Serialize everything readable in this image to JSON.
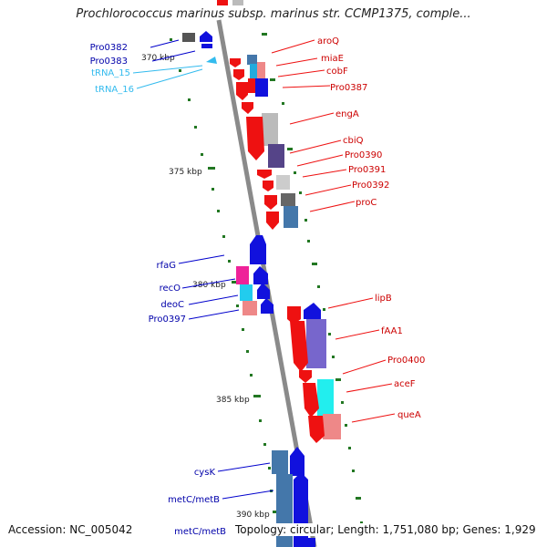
{
  "title": "Prochlorococcus marinus subsp. marinus str. CCMP1375, comple...",
  "footer": {
    "accession": "Accession: NC_005042",
    "topology": "Topology: circular; Length: 1,751,080 bp; Genes: 1,929"
  },
  "colors": {
    "forward_gene": "#ee1111",
    "reverse_gene": "#1111dd",
    "forward_label": "#cc0000",
    "reverse_label": "#0000aa",
    "trna": "#33bbee",
    "tick": "#227722",
    "backbone": "#888888"
  },
  "scale_labels": [
    "370 kbp",
    "375 kbp",
    "380 kbp",
    "385 kbp",
    "390 kbp"
  ],
  "labels_right": [
    "aroQ",
    "miaE",
    "cobF",
    "Pro0387",
    "engA",
    "cbiQ",
    "Pro0390",
    "Pro0391",
    "Pro0392",
    "proC",
    "lipB",
    "fAA1",
    "Pro0400",
    "aceF",
    "queA"
  ],
  "labels_left": [
    "Pro0382",
    "Pro0383",
    "tRNA_15",
    "tRNA_16",
    "rfaG",
    "recO",
    "deoC",
    "Pro0397",
    "cysK",
    "metC/metB",
    "metC/metB"
  ]
}
